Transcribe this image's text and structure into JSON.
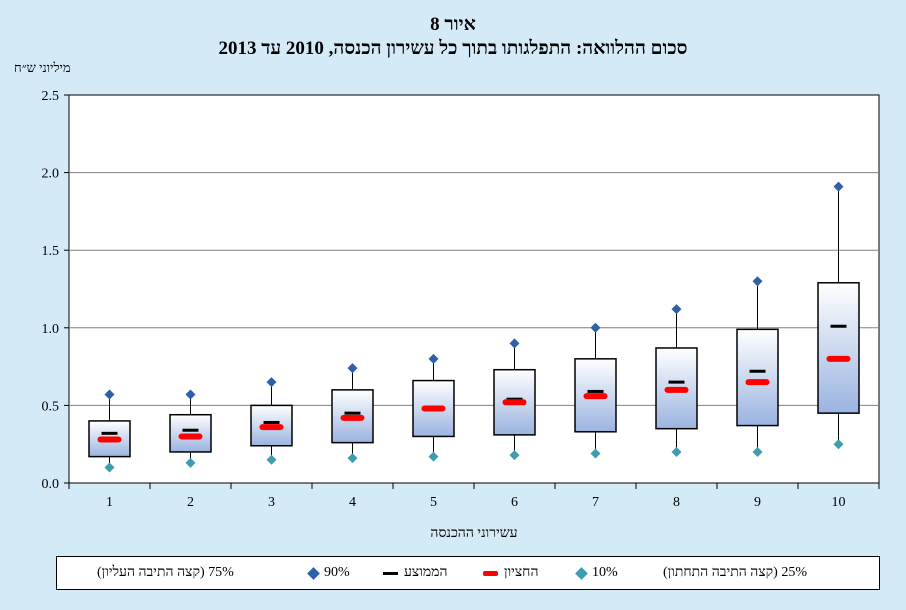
{
  "header": {
    "title": "איור 8",
    "subtitle": "סכום ההלוואה: התפלגותו בתוך כל עשירון הכנסה, 2010 עד 2013",
    "unit": "מיליוני ש״ח"
  },
  "legend": {
    "p75": "75% (קצה התיבה העליון)",
    "p90": "90%",
    "mean": "הממוצע",
    "median": "החציון",
    "p10": "10%",
    "p25": "25% (קצה התיבה התחתון)"
  },
  "colors": {
    "background": "#d5eaf7",
    "p90": "#2e5fa8",
    "p10": "#3f9db0",
    "mean": "#000000",
    "median": "#ff0000",
    "box_top": "#ffffff",
    "box_bottom": "#9ab3e0"
  },
  "chart_data": {
    "type": "box",
    "title": "סכום ההלוואה: התפלגותו בתוך כל עשירון הכנסה, 2010 עד 2013",
    "xlabel": "עשירוני ההכנסה",
    "ylabel": "מיליוני ש״ח",
    "ylim": [
      0,
      2.5
    ],
    "yticks": [
      "0.0",
      "0.5",
      "1.0",
      "1.5",
      "2.0",
      "2.5"
    ],
    "grid": true,
    "legend_position": "bottom",
    "categories": [
      "1",
      "2",
      "3",
      "4",
      "5",
      "6",
      "7",
      "8",
      "9",
      "10"
    ],
    "p10": [
      0.1,
      0.13,
      0.15,
      0.16,
      0.17,
      0.18,
      0.19,
      0.2,
      0.2,
      0.25
    ],
    "p25": [
      0.17,
      0.2,
      0.24,
      0.26,
      0.3,
      0.31,
      0.33,
      0.35,
      0.37,
      0.45
    ],
    "median": [
      0.28,
      0.3,
      0.36,
      0.42,
      0.48,
      0.52,
      0.56,
      0.6,
      0.65,
      0.8
    ],
    "mean": [
      0.32,
      0.34,
      0.39,
      0.45,
      0.48,
      0.54,
      0.59,
      0.65,
      0.72,
      1.01
    ],
    "p75": [
      0.4,
      0.44,
      0.5,
      0.6,
      0.66,
      0.73,
      0.8,
      0.87,
      0.99,
      1.29
    ],
    "p90": [
      0.57,
      0.57,
      0.65,
      0.74,
      0.8,
      0.9,
      1.0,
      1.12,
      1.3,
      1.91
    ]
  }
}
